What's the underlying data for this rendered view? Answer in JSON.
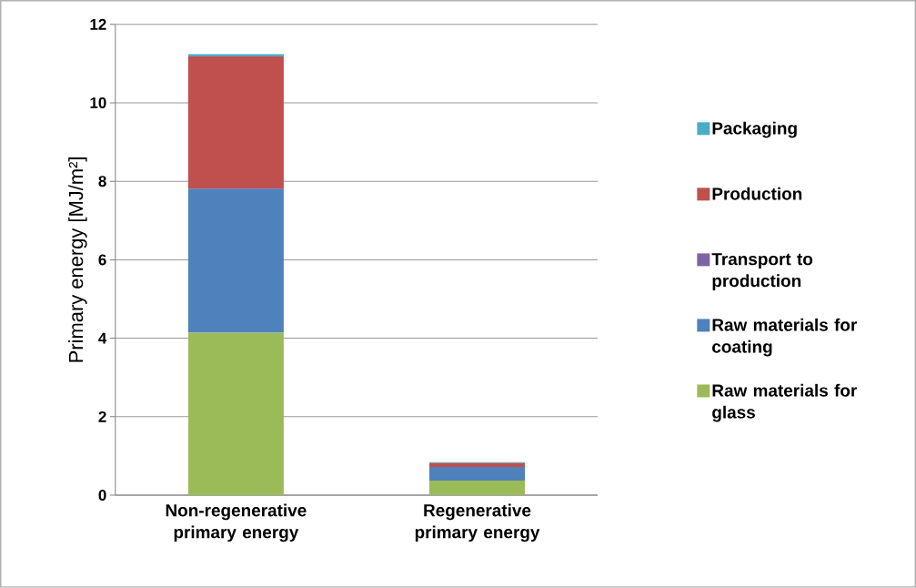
{
  "chart_data": {
    "type": "bar",
    "stacked": true,
    "ylabel": "Primary energy [MJ/m²]",
    "categories": [
      "Non-regenerative primary energy",
      "Regenerative primary energy"
    ],
    "series": [
      {
        "name": "Raw materials for glass",
        "color": "#9bbb59",
        "values": [
          4.14,
          0.37
        ]
      },
      {
        "name": "Raw materials for coating",
        "color": "#4f81bd",
        "values": [
          3.66,
          0.35
        ]
      },
      {
        "name": "Transport to production",
        "color": "#8064a2",
        "values": [
          0.02,
          0.0
        ]
      },
      {
        "name": "Production",
        "color": "#c0504d",
        "values": [
          3.36,
          0.1
        ]
      },
      {
        "name": "Packaging",
        "color": "#4bacc6",
        "values": [
          0.06,
          0.02
        ]
      }
    ],
    "ylim": [
      0,
      12
    ],
    "yticks": [
      0,
      2,
      4,
      6,
      8,
      10,
      12
    ],
    "grid": "y",
    "legend": "right"
  }
}
